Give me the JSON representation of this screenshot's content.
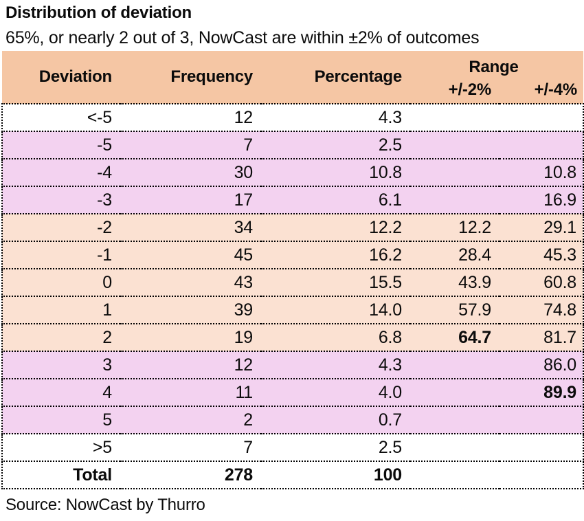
{
  "title": "Distribution of deviation",
  "subtitle": "65%, or nearly 2 out of 3, NowCast are within ±2% of outcomes",
  "source": "Source: NowCast by Thurro",
  "colors": {
    "header_bg": "#f5c6a4",
    "peach_row": "#fbe1d2",
    "pink_row": "#f3d2f0",
    "text": "#0b0b0b",
    "border": "#000000",
    "bg": "#ffffff"
  },
  "chart_data": {
    "type": "table",
    "title": "Distribution of deviation",
    "subtitle": "65%, or nearly 2 out of 3, NowCast are within ±2% of outcomes",
    "columns": [
      "Deviation",
      "Frequency",
      "Percentage",
      "+/-2%",
      "+/-4%"
    ],
    "range_group_label": "Range",
    "rows": [
      {
        "deviation": "<-5",
        "frequency": "12",
        "percentage": "4.3",
        "pm2": "",
        "pm4": "",
        "bg": "white",
        "bold": []
      },
      {
        "deviation": "-5",
        "frequency": "7",
        "percentage": "2.5",
        "pm2": "",
        "pm4": "",
        "bg": "pink",
        "bold": []
      },
      {
        "deviation": "-4",
        "frequency": "30",
        "percentage": "10.8",
        "pm2": "",
        "pm4": "10.8",
        "bg": "pink",
        "bold": []
      },
      {
        "deviation": "-3",
        "frequency": "17",
        "percentage": "6.1",
        "pm2": "",
        "pm4": "16.9",
        "bg": "pink",
        "bold": []
      },
      {
        "deviation": "-2",
        "frequency": "34",
        "percentage": "12.2",
        "pm2": "12.2",
        "pm4": "29.1",
        "bg": "peach",
        "bold": []
      },
      {
        "deviation": "-1",
        "frequency": "45",
        "percentage": "16.2",
        "pm2": "28.4",
        "pm4": "45.3",
        "bg": "peach",
        "bold": []
      },
      {
        "deviation": "0",
        "frequency": "43",
        "percentage": "15.5",
        "pm2": "43.9",
        "pm4": "60.8",
        "bg": "peach",
        "bold": []
      },
      {
        "deviation": "1",
        "frequency": "39",
        "percentage": "14.0",
        "pm2": "57.9",
        "pm4": "74.8",
        "bg": "peach",
        "bold": []
      },
      {
        "deviation": "2",
        "frequency": "19",
        "percentage": "6.8",
        "pm2": "64.7",
        "pm4": "81.7",
        "bg": "peach",
        "bold": [
          "pm2"
        ]
      },
      {
        "deviation": "3",
        "frequency": "12",
        "percentage": "4.3",
        "pm2": "",
        "pm4": "86.0",
        "bg": "pink",
        "bold": []
      },
      {
        "deviation": "4",
        "frequency": "11",
        "percentage": "4.0",
        "pm2": "",
        "pm4": "89.9",
        "bg": "pink",
        "bold": [
          "pm4"
        ]
      },
      {
        "deviation": "5",
        "frequency": "2",
        "percentage": "0.7",
        "pm2": "",
        "pm4": "",
        "bg": "pink",
        "bold": []
      },
      {
        "deviation": ">5",
        "frequency": "7",
        "percentage": "2.5",
        "pm2": "",
        "pm4": "",
        "bg": "white",
        "bold": []
      },
      {
        "deviation": "Total",
        "frequency": "278",
        "percentage": "100",
        "pm2": "",
        "pm4": "",
        "bg": "white",
        "bold": [
          "deviation",
          "frequency",
          "percentage"
        ],
        "total": true
      }
    ]
  }
}
